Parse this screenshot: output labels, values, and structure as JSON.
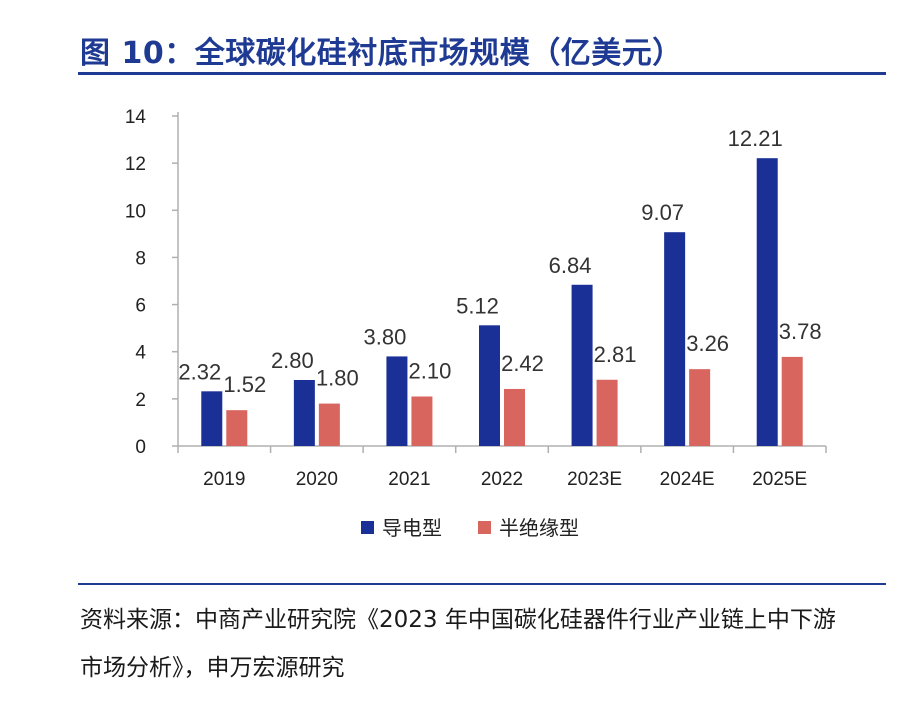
{
  "figure": {
    "title": "图 10：全球碳化硅衬底市场规模（亿美元）",
    "source": "资料来源：中商产业研究院《2023 年中国碳化硅器件行业产业链上中下游市场分析》，申万宏源研究"
  },
  "colors": {
    "accent": "#1f3a93",
    "conductive": "#1a3096",
    "semi_insulating": "#d9655f",
    "axis": "#b0b0b0"
  },
  "chart_data": {
    "type": "bar",
    "categories": [
      "2019",
      "2020",
      "2021",
      "2022",
      "2023E",
      "2024E",
      "2025E"
    ],
    "series": [
      {
        "name": "导电型",
        "values": [
          2.32,
          2.8,
          3.8,
          5.12,
          6.84,
          9.07,
          12.21
        ],
        "labels": [
          "2.32",
          "2.80",
          "3.80",
          "5.12",
          "6.84",
          "9.07",
          "12.21"
        ]
      },
      {
        "name": "半绝缘型",
        "values": [
          1.52,
          1.8,
          2.1,
          2.42,
          2.81,
          3.26,
          3.78
        ],
        "labels": [
          "1.52",
          "1.80",
          "2.10",
          "2.42",
          "2.81",
          "3.26",
          "3.78"
        ]
      }
    ],
    "ylim": [
      0,
      14
    ],
    "yticks": [
      "0",
      "2",
      "4",
      "6",
      "8",
      "10",
      "12",
      "14"
    ],
    "grid": false,
    "legend": "bottom"
  }
}
